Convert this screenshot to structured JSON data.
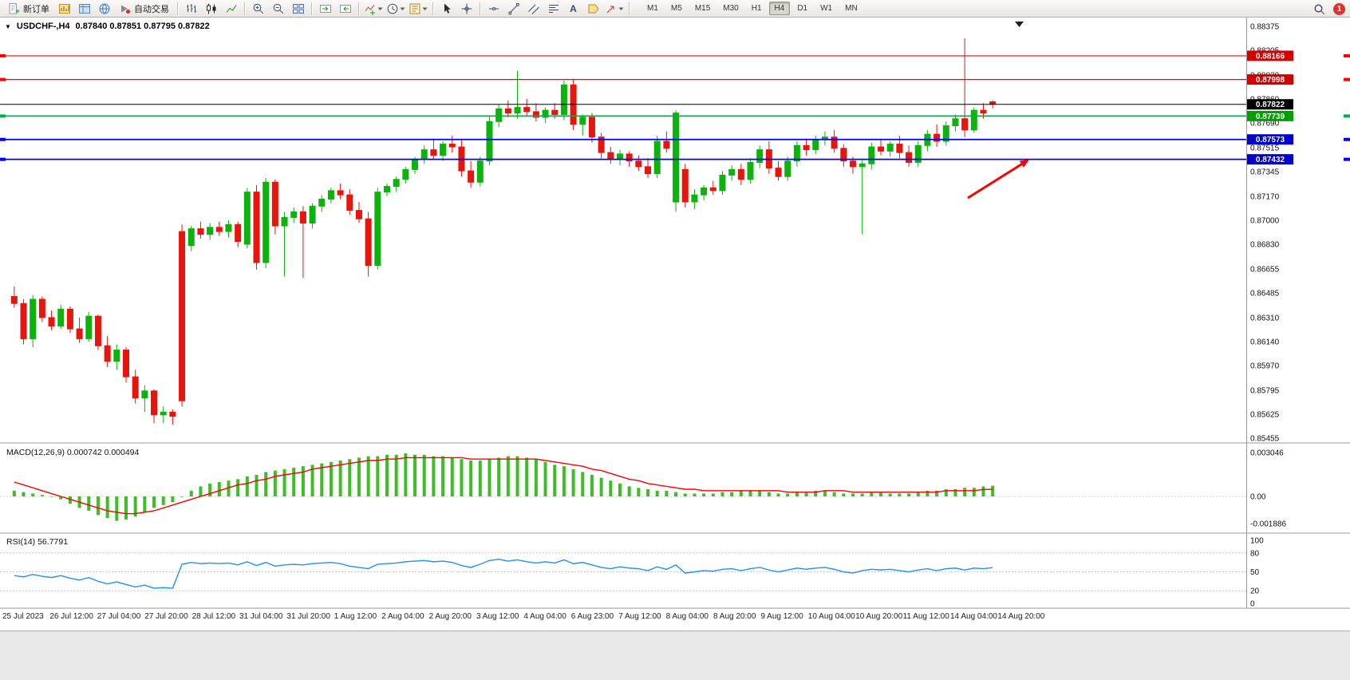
{
  "toolbar": {
    "new_order": "新订单",
    "autotrading": "自动交易",
    "timeframes": [
      "M1",
      "M5",
      "M15",
      "M30",
      "H1",
      "H4",
      "D1",
      "W1",
      "MN"
    ],
    "active_timeframe": "H4",
    "notification_count": "1"
  },
  "icons": {
    "title_caret": "▼",
    "text_tool": "A"
  },
  "chart": {
    "symbol_period": "USDCHF-,H4",
    "ohlc": "0.87840 0.87851 0.87795 0.87822",
    "macd_title": "MACD(12,26,9) 0.000742 0.000494",
    "rsi_title": "RSI(14) 56.7791",
    "colors": {
      "bull": "#0CB30C",
      "bear": "#E8150D",
      "level_red": "#FF0000",
      "level_blue": "#0000FF",
      "level_green": "#00B050",
      "price_line": "#000000",
      "macd_hist": "#3DBE26",
      "macd_signal": "#FF0000",
      "rsi_line": "#1E90FF",
      "arrow": "#FF0000"
    },
    "price_axis": {
      "min": 0.85455,
      "max": 0.88375,
      "ticks": [
        "0.88375",
        "0.88205",
        "0.88030",
        "0.87860",
        "0.87690",
        "0.87515",
        "0.87345",
        "0.87170",
        "0.87000",
        "0.86830",
        "0.86655",
        "0.86485",
        "0.86310",
        "0.86140",
        "0.85970",
        "0.85795",
        "0.85625",
        "0.85455"
      ]
    },
    "levels": [
      {
        "price": 0.88166,
        "label": "0.88166",
        "color": "red"
      },
      {
        "price": 0.87998,
        "label": "0.87998",
        "color": "red"
      },
      {
        "price": 0.87739,
        "label": "0.87739",
        "color": "green"
      },
      {
        "price": 0.87573,
        "label": "0.87573",
        "color": "blue"
      },
      {
        "price": 0.87432,
        "label": "0.87432",
        "color": "blue"
      }
    ],
    "current_price": {
      "value": 0.87822,
      "label": "0.87822"
    },
    "macd_axis": {
      "max": 0.003046,
      "min": -0.001886,
      "max_label": "0.003046",
      "zero_label": "0.00",
      "min_label": "-0.001886"
    },
    "rsi_axis": {
      "ticks": [
        {
          "v": 100,
          "label": "100"
        },
        {
          "v": 80,
          "label": "80"
        },
        {
          "v": 50,
          "label": "50"
        },
        {
          "v": 20,
          "label": "20"
        },
        {
          "v": 0,
          "label": "0"
        }
      ],
      "levels": [
        80,
        50,
        20
      ]
    },
    "time_axis": [
      "25 Jul 2023",
      "26 Jul 12:00",
      "27 Jul 04:00",
      "27 Jul 20:00",
      "28 Jul 12:00",
      "31 Jul 04:00",
      "31 Jul 20:00",
      "1 Aug 12:00",
      "2 Aug 04:00",
      "2 Aug 20:00",
      "3 Aug 12:00",
      "4 Aug 04:00",
      "6 Aug 23:00",
      "7 Aug 12:00",
      "8 Aug 04:00",
      "8 Aug 20:00",
      "9 Aug 12:00",
      "10 Aug 04:00",
      "10 Aug 20:00",
      "11 Aug 12:00",
      "14 Aug 04:00",
      "14 Aug 20:00"
    ]
  },
  "chart_data": {
    "type": "candlestick",
    "symbol": "USDCHF-",
    "timeframe": "H4",
    "visible_range": [
      "25 Jul 2023 00:00",
      "14 Aug 2023 20:00"
    ],
    "price_range": [
      0.85455,
      0.88375
    ],
    "last_price": 0.87822,
    "candles_ohlc": [
      [
        0.8646,
        0.8653,
        0.8638,
        0.8641
      ],
      [
        0.8641,
        0.8644,
        0.8612,
        0.8616
      ],
      [
        0.8616,
        0.8647,
        0.861,
        0.8644
      ],
      [
        0.8644,
        0.8646,
        0.8628,
        0.8631
      ],
      [
        0.8631,
        0.8636,
        0.8622,
        0.8625
      ],
      [
        0.8625,
        0.864,
        0.8623,
        0.8637
      ],
      [
        0.8637,
        0.8639,
        0.862,
        0.8623
      ],
      [
        0.8623,
        0.8631,
        0.8613,
        0.8616
      ],
      [
        0.8616,
        0.8635,
        0.8614,
        0.8632
      ],
      [
        0.8632,
        0.8633,
        0.8608,
        0.8611
      ],
      [
        0.8611,
        0.8618,
        0.8596,
        0.86
      ],
      [
        0.86,
        0.8612,
        0.8594,
        0.8608
      ],
      [
        0.8608,
        0.861,
        0.8585,
        0.8589
      ],
      [
        0.8589,
        0.8594,
        0.857,
        0.8574
      ],
      [
        0.8574,
        0.8583,
        0.8564,
        0.8579
      ],
      [
        0.8579,
        0.858,
        0.8556,
        0.8562
      ],
      [
        0.8562,
        0.8568,
        0.8556,
        0.8564
      ],
      [
        0.8564,
        0.8566,
        0.8555,
        0.8561
      ],
      [
        0.8692,
        0.8697,
        0.8568,
        0.8572
      ],
      [
        0.8682,
        0.8696,
        0.8678,
        0.8694
      ],
      [
        0.8694,
        0.8699,
        0.8687,
        0.869
      ],
      [
        0.869,
        0.8698,
        0.8686,
        0.8695
      ],
      [
        0.8695,
        0.8699,
        0.8689,
        0.8692
      ],
      [
        0.8692,
        0.87,
        0.8688,
        0.8697
      ],
      [
        0.8697,
        0.8699,
        0.8681,
        0.8685
      ],
      [
        0.8683,
        0.8723,
        0.868,
        0.872
      ],
      [
        0.872,
        0.8725,
        0.8665,
        0.867
      ],
      [
        0.867,
        0.873,
        0.8666,
        0.8727
      ],
      [
        0.8727,
        0.8729,
        0.869,
        0.8696
      ],
      [
        0.8696,
        0.8706,
        0.866,
        0.8702
      ],
      [
        0.8702,
        0.8709,
        0.8698,
        0.8706
      ],
      [
        0.8706,
        0.871,
        0.8659,
        0.8698
      ],
      [
        0.8698,
        0.8712,
        0.8694,
        0.871
      ],
      [
        0.871,
        0.8718,
        0.8706,
        0.8715
      ],
      [
        0.8715,
        0.8723,
        0.8712,
        0.8721
      ],
      [
        0.8721,
        0.8726,
        0.8715,
        0.8718
      ],
      [
        0.8718,
        0.8722,
        0.8704,
        0.8707
      ],
      [
        0.8707,
        0.8713,
        0.8698,
        0.8701
      ],
      [
        0.8701,
        0.8706,
        0.866,
        0.8668
      ],
      [
        0.8668,
        0.8723,
        0.8665,
        0.872
      ],
      [
        0.872,
        0.8726,
        0.8717,
        0.8724
      ],
      [
        0.8724,
        0.8731,
        0.872,
        0.8729
      ],
      [
        0.8729,
        0.8738,
        0.8726,
        0.8736
      ],
      [
        0.8736,
        0.8745,
        0.8733,
        0.8743
      ],
      [
        0.8743,
        0.8753,
        0.874,
        0.875
      ],
      [
        0.875,
        0.8758,
        0.8743,
        0.8746
      ],
      [
        0.8746,
        0.8756,
        0.8742,
        0.8754
      ],
      [
        0.8754,
        0.876,
        0.8748,
        0.8752
      ],
      [
        0.8752,
        0.8757,
        0.8731,
        0.8735
      ],
      [
        0.8735,
        0.8742,
        0.8723,
        0.8727
      ],
      [
        0.8727,
        0.8745,
        0.8724,
        0.8742
      ],
      [
        0.8742,
        0.8774,
        0.8739,
        0.877
      ],
      [
        0.877,
        0.8782,
        0.8766,
        0.8779
      ],
      [
        0.8779,
        0.8785,
        0.8773,
        0.8776
      ],
      [
        0.8776,
        0.8806,
        0.8772,
        0.878
      ],
      [
        0.878,
        0.8786,
        0.8774,
        0.8777
      ],
      [
        0.8777,
        0.8783,
        0.877,
        0.8773
      ],
      [
        0.8773,
        0.878,
        0.8769,
        0.8778
      ],
      [
        0.8778,
        0.8783,
        0.8772,
        0.8775
      ],
      [
        0.8775,
        0.8799,
        0.8771,
        0.8796
      ],
      [
        0.8796,
        0.88,
        0.8764,
        0.8768
      ],
      [
        0.8768,
        0.8775,
        0.876,
        0.8773
      ],
      [
        0.8773,
        0.8776,
        0.8755,
        0.8759
      ],
      [
        0.8759,
        0.8762,
        0.8744,
        0.8748
      ],
      [
        0.8748,
        0.8752,
        0.874,
        0.8743
      ],
      [
        0.8743,
        0.875,
        0.8739,
        0.8747
      ],
      [
        0.8747,
        0.8749,
        0.8738,
        0.8742
      ],
      [
        0.8742,
        0.8746,
        0.8735,
        0.8738
      ],
      [
        0.8738,
        0.8744,
        0.873,
        0.8733
      ],
      [
        0.8733,
        0.876,
        0.873,
        0.8756
      ],
      [
        0.8756,
        0.8763,
        0.8748,
        0.8751
      ],
      [
        0.8713,
        0.8778,
        0.8706,
        0.8776
      ],
      [
        0.8736,
        0.874,
        0.8709,
        0.8713
      ],
      [
        0.8713,
        0.8722,
        0.8708,
        0.8718
      ],
      [
        0.8718,
        0.8725,
        0.8714,
        0.8723
      ],
      [
        0.8723,
        0.8728,
        0.8718,
        0.8721
      ],
      [
        0.8721,
        0.8735,
        0.8718,
        0.8732
      ],
      [
        0.8732,
        0.8739,
        0.8728,
        0.8736
      ],
      [
        0.8736,
        0.874,
        0.8725,
        0.8729
      ],
      [
        0.8729,
        0.8744,
        0.8726,
        0.8741
      ],
      [
        0.8741,
        0.8753,
        0.8737,
        0.875
      ],
      [
        0.875,
        0.8756,
        0.8733,
        0.8737
      ],
      [
        0.8737,
        0.8742,
        0.8728,
        0.8731
      ],
      [
        0.8731,
        0.8745,
        0.8728,
        0.8742
      ],
      [
        0.8742,
        0.8756,
        0.8738,
        0.8753
      ],
      [
        0.8753,
        0.8758,
        0.8746,
        0.875
      ],
      [
        0.875,
        0.876,
        0.8747,
        0.8757
      ],
      [
        0.8757,
        0.8763,
        0.8753,
        0.8759
      ],
      [
        0.8759,
        0.8764,
        0.8748,
        0.8751
      ],
      [
        0.8751,
        0.8754,
        0.8738,
        0.8742
      ],
      [
        0.8742,
        0.8745,
        0.8733,
        0.8738
      ],
      [
        0.8738,
        0.8743,
        0.869,
        0.874
      ],
      [
        0.874,
        0.8755,
        0.8736,
        0.8752
      ],
      [
        0.8752,
        0.8757,
        0.8746,
        0.8749
      ],
      [
        0.8749,
        0.8756,
        0.8745,
        0.8754
      ],
      [
        0.8754,
        0.876,
        0.8744,
        0.8748
      ],
      [
        0.8748,
        0.8753,
        0.8738,
        0.8741
      ],
      [
        0.8741,
        0.8756,
        0.8738,
        0.8753
      ],
      [
        0.8753,
        0.8764,
        0.8749,
        0.8761
      ],
      [
        0.8761,
        0.8768,
        0.8752,
        0.8756
      ],
      [
        0.8756,
        0.877,
        0.8753,
        0.8767
      ],
      [
        0.8767,
        0.8775,
        0.8763,
        0.8772
      ],
      [
        0.8772,
        0.8829,
        0.8759,
        0.8764
      ],
      [
        0.8764,
        0.878,
        0.8762,
        0.8778
      ],
      [
        0.8778,
        0.8783,
        0.8772,
        0.8776
      ],
      [
        0.8784,
        0.87851,
        0.87795,
        0.87822
      ]
    ],
    "indicators": {
      "macd": {
        "params": "12,26,9",
        "main_value": 0.000742,
        "signal_value": 0.000494,
        "range": [
          -0.001886,
          0.003046
        ],
        "hist": [
          0.0004,
          0.0003,
          0.0002,
          0.0001,
          0.0,
          -0.0002,
          -0.0005,
          -0.0008,
          -0.001,
          -0.0013,
          -0.0015,
          -0.0017,
          -0.0016,
          -0.0014,
          -0.0011,
          -0.0008,
          -0.0006,
          -0.0004,
          0.0,
          0.0004,
          0.0007,
          0.0009,
          0.001,
          0.0011,
          0.0012,
          0.0014,
          0.0015,
          0.0017,
          0.0018,
          0.0019,
          0.002,
          0.0021,
          0.0022,
          0.0023,
          0.0024,
          0.0025,
          0.0026,
          0.0027,
          0.0028,
          0.0028,
          0.0029,
          0.0029,
          0.003,
          0.0029,
          0.0029,
          0.0028,
          0.0028,
          0.0027,
          0.0026,
          0.0025,
          0.0025,
          0.0026,
          0.0027,
          0.0028,
          0.0028,
          0.0027,
          0.0026,
          0.0024,
          0.0022,
          0.0021,
          0.0019,
          0.0017,
          0.0015,
          0.0013,
          0.0011,
          0.0009,
          0.0007,
          0.0006,
          0.0005,
          0.0004,
          0.0004,
          0.0003,
          0.0002,
          0.0002,
          0.0002,
          0.0002,
          0.0003,
          0.0003,
          0.0004,
          0.0004,
          0.0004,
          0.0003,
          0.0002,
          0.0002,
          0.0003,
          0.0003,
          0.0004,
          0.0004,
          0.0003,
          0.0002,
          0.0002,
          0.0002,
          0.0003,
          0.0003,
          0.0002,
          0.0002,
          0.0002,
          0.0003,
          0.0004,
          0.0004,
          0.0005,
          0.0005,
          0.0006,
          0.0006,
          0.0007,
          0.000742
        ],
        "signal": [
          0.001,
          0.0008,
          0.0006,
          0.0004,
          0.0002,
          0.0,
          -0.0002,
          -0.0004,
          -0.0006,
          -0.0008,
          -0.001,
          -0.0011,
          -0.0012,
          -0.0012,
          -0.0011,
          -0.001,
          -0.0008,
          -0.0006,
          -0.0004,
          -0.0002,
          0.0,
          0.0002,
          0.0004,
          0.0006,
          0.0008,
          0.0009,
          0.0011,
          0.0012,
          0.0014,
          0.0015,
          0.0016,
          0.0017,
          0.0019,
          0.002,
          0.0021,
          0.0022,
          0.0023,
          0.0024,
          0.0025,
          0.0025,
          0.0026,
          0.0026,
          0.0027,
          0.0027,
          0.0027,
          0.0027,
          0.0027,
          0.0027,
          0.0027,
          0.0026,
          0.0026,
          0.0026,
          0.0026,
          0.0026,
          0.0026,
          0.0026,
          0.0026,
          0.0025,
          0.0024,
          0.0023,
          0.0022,
          0.0021,
          0.0019,
          0.0018,
          0.0016,
          0.0014,
          0.0012,
          0.0011,
          0.0009,
          0.0008,
          0.0007,
          0.0006,
          0.0005,
          0.0005,
          0.0004,
          0.0004,
          0.0004,
          0.0004,
          0.0004,
          0.0004,
          0.0004,
          0.0004,
          0.0004,
          0.0003,
          0.0003,
          0.0003,
          0.0003,
          0.0004,
          0.0004,
          0.0004,
          0.0003,
          0.0003,
          0.0003,
          0.0003,
          0.0003,
          0.0003,
          0.0003,
          0.0003,
          0.0003,
          0.0003,
          0.0004,
          0.0004,
          0.0004,
          0.0004,
          0.00048,
          0.000494
        ]
      },
      "rsi": {
        "params": "14",
        "value": 56.7791,
        "levels": [
          80,
          50,
          20
        ],
        "range": [
          0,
          100
        ],
        "series": [
          44,
          42,
          46,
          43,
          41,
          44,
          40,
          37,
          41,
          35,
          31,
          34,
          30,
          26,
          29,
          24,
          25,
          24,
          62,
          65,
          63,
          64,
          63,
          64,
          61,
          66,
          60,
          65,
          59,
          61,
          62,
          61,
          63,
          64,
          65,
          63,
          59,
          57,
          55,
          62,
          63,
          64,
          66,
          67,
          68,
          66,
          67,
          65,
          60,
          57,
          62,
          68,
          70,
          67,
          69,
          66,
          64,
          66,
          64,
          69,
          63,
          65,
          61,
          57,
          55,
          58,
          56,
          55,
          52,
          58,
          54,
          61,
          48,
          50,
          52,
          51,
          54,
          55,
          52,
          55,
          57,
          53,
          50,
          53,
          56,
          54,
          56,
          57,
          54,
          50,
          48,
          52,
          54,
          53,
          54,
          52,
          50,
          53,
          55,
          52,
          55,
          56,
          53,
          56,
          55,
          56.7791
        ]
      }
    },
    "horizontal_levels": [
      {
        "price": 0.88166,
        "color": "red"
      },
      {
        "price": 0.87998,
        "color": "red"
      },
      {
        "price": 0.87739,
        "color": "green"
      },
      {
        "price": 0.87573,
        "color": "blue"
      },
      {
        "price": 0.87432,
        "color": "blue"
      }
    ],
    "annotations": [
      {
        "type": "arrow",
        "color": "#FF0000",
        "points_to_price": 0.87432
      }
    ]
  }
}
